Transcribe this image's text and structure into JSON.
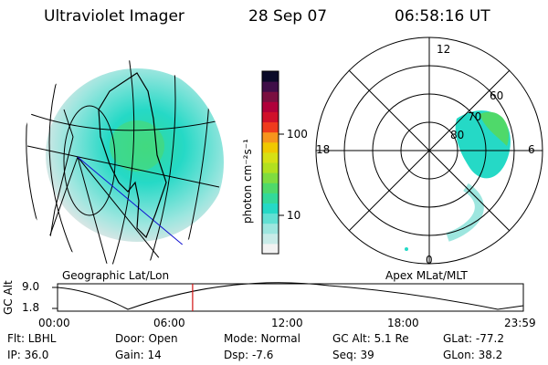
{
  "header": {
    "instrument": "Ultraviolet Imager",
    "date": "28 Sep 07",
    "time": "06:58:16 UT"
  },
  "geo_panel": {
    "label": "Geographic Lat/Lon"
  },
  "colorbar": {
    "unit_label": "photon cm⁻²s⁻¹",
    "ticks": [
      "100",
      "10"
    ],
    "colors": [
      "#f2f2f2",
      "#c8ebe8",
      "#9de6df",
      "#62e0d3",
      "#25d9c6",
      "#33d99a",
      "#4fd96a",
      "#7fdc40",
      "#b2e01f",
      "#d6e014",
      "#f0c800",
      "#f7941d",
      "#ef3b1d",
      "#d0102a",
      "#b0003a",
      "#7a1040",
      "#3f0f48",
      "#0a0a28"
    ]
  },
  "polar_panel": {
    "label": "Apex MLat/MLT",
    "mlt_labels": [
      "12",
      "18",
      "6",
      "0"
    ],
    "lat_labels": [
      "60",
      "70",
      "80"
    ]
  },
  "timeline": {
    "y_axis_label": "GC Alt",
    "y_ticks": [
      "9.0",
      "1.8"
    ],
    "x_ticks": [
      "00:00",
      "06:00",
      "12:00",
      "18:00",
      "23:59"
    ],
    "marker_fraction": 0.29,
    "marker_color": "#d01010"
  },
  "info": {
    "flt": "Flt: LBHL",
    "ip": "IP: 36.0",
    "door": "Door: Open",
    "gain": "Gain: 14",
    "mode": "Mode: Normal",
    "dsp": "Dsp:  -7.6",
    "gcalt": "GC Alt: 5.1 Re",
    "seq": "Seq: 39",
    "glat": "GLat: -77.2",
    "glon": "GLon:  38.2"
  }
}
